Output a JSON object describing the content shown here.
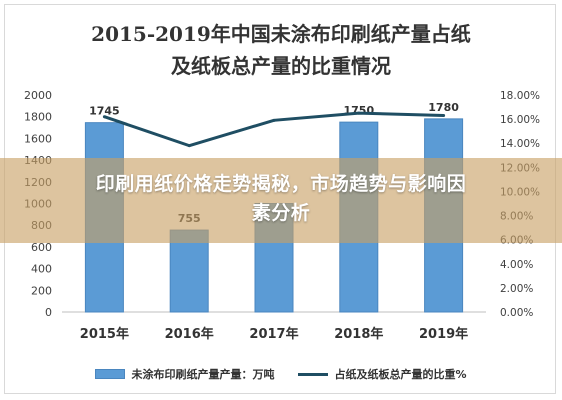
{
  "title_line1": "2015-2019年中国未涂布印刷纸产量占纸",
  "title_line2": "及纸板总产量的比重情况",
  "banner": {
    "line1": "印刷用纸价格走势揭秘，市场趋势与影响因",
    "line2": "素分析"
  },
  "colors": {
    "bar": "#5b9bd5",
    "line": "#1f4e63",
    "banner": "#c8a064"
  },
  "chart_data": {
    "type": "bar",
    "categories": [
      "2015年",
      "2016年",
      "2017年",
      "2018年",
      "2019年"
    ],
    "series": [
      {
        "name": "未涂布印刷纸产量产量：万吨",
        "type": "bar",
        "axis": "left",
        "values": [
          1745,
          755,
          1000,
          1750,
          1780
        ],
        "data_labels": [
          "1745",
          "755",
          "",
          "1750",
          "1780"
        ]
      },
      {
        "name": "占纸及纸板总产量的比重%",
        "type": "line",
        "axis": "right",
        "values": [
          16.2,
          13.8,
          15.9,
          16.5,
          16.3
        ]
      }
    ],
    "y_left": {
      "min": 0,
      "max": 2000,
      "step": 200,
      "ticks": [
        "0",
        "200",
        "400",
        "600",
        "800",
        "1000",
        "1200",
        "1400",
        "1600",
        "1800",
        "2000"
      ]
    },
    "y_right": {
      "min": 0,
      "max": 18,
      "step": 2,
      "ticks": [
        "0.00%",
        "2.00%",
        "4.00%",
        "6.00%",
        "8.00%",
        "10.00%",
        "12.00%",
        "14.00%",
        "16.00%",
        "18.00%"
      ]
    },
    "legend_position": "bottom",
    "grid": false
  }
}
